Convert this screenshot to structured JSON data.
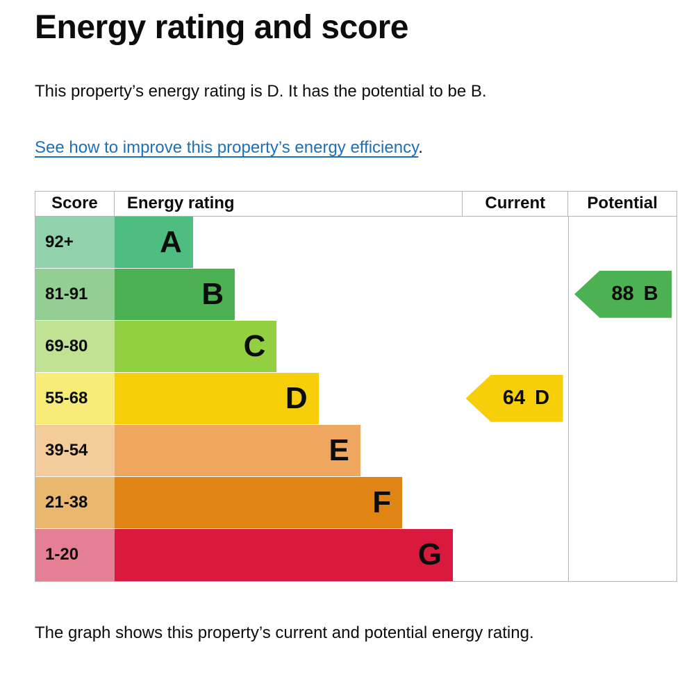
{
  "page": {
    "title": "Energy rating and score",
    "summary": "This property’s energy rating is D. It has the potential to be B.",
    "improve_link_text": "See how to improve this property’s energy efficiency",
    "improve_link_suffix": ".",
    "caption": "The graph shows this property’s current and potential energy rating."
  },
  "colors": {
    "text": "#0b0c0c",
    "link": "#1d70b8",
    "table_border": "#b1b4b6"
  },
  "chart_data": {
    "type": "table",
    "title": "Energy rating and score",
    "columns": {
      "score": "Score",
      "rating": "Energy rating",
      "current": "Current",
      "potential": "Potential"
    },
    "bands": [
      {
        "score": "92+",
        "letter": "A",
        "bar_color": "#4dbe7f",
        "score_color": "#8fd2ac",
        "width_pct": 22.5
      },
      {
        "score": "81-91",
        "letter": "B",
        "bar_color": "#4bb152",
        "score_color": "#93ce93",
        "width_pct": 34.5
      },
      {
        "score": "69-80",
        "letter": "C",
        "bar_color": "#92cf41",
        "score_color": "#c1e293",
        "width_pct": 46.5
      },
      {
        "score": "55-68",
        "letter": "D",
        "bar_color": "#f6cf0a",
        "score_color": "#f7ec77",
        "width_pct": 58.5
      },
      {
        "score": "39-54",
        "letter": "E",
        "bar_color": "#efa75f",
        "score_color": "#f4cb9a",
        "width_pct": 70.5
      },
      {
        "score": "21-38",
        "letter": "F",
        "bar_color": "#e08414",
        "score_color": "#eab76e",
        "width_pct": 82.5
      },
      {
        "score": "1-20",
        "letter": "G",
        "bar_color": "#d91a3e",
        "score_color": "#e57f94",
        "width_pct": 97
      }
    ],
    "current": {
      "value": "64",
      "letter": "D",
      "band_index": 3,
      "color": "#f6cf0a"
    },
    "potential": {
      "value": "88",
      "letter": "B",
      "band_index": 1,
      "color": "#4bb152"
    }
  }
}
